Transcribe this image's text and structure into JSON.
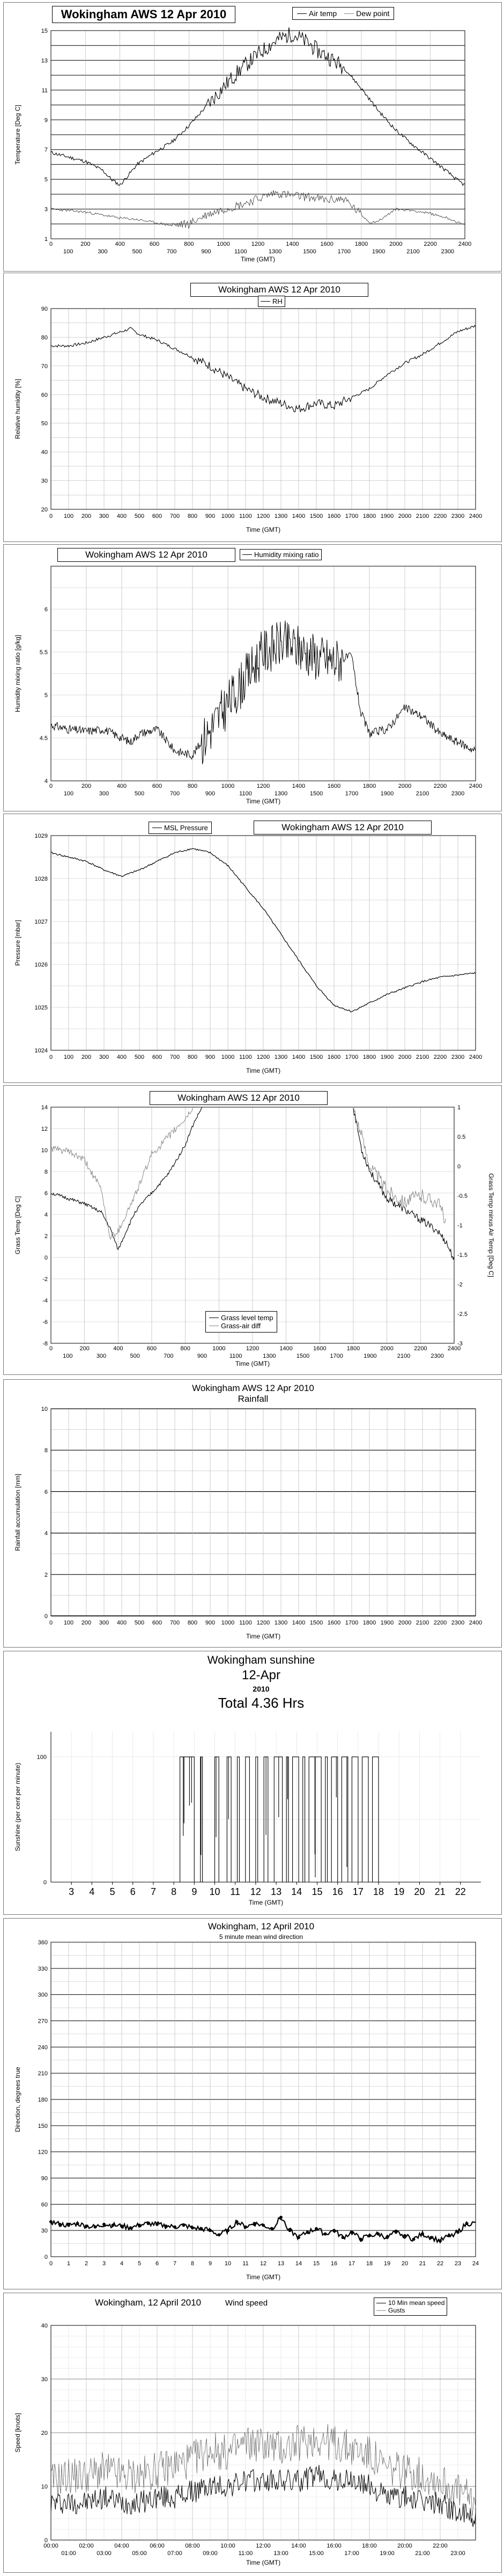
{
  "chart_data": [
    {
      "id": "temp",
      "type": "line",
      "title": "Wokingham AWS 12 Apr 2010",
      "xlabel": "Time (GMT)",
      "ylabel": "Temperature [Deg C]",
      "xlim": [
        0,
        2400
      ],
      "ylim": [
        1,
        15
      ],
      "x_ticks": [
        100,
        300,
        500,
        700,
        900,
        1100,
        1300,
        1500,
        1700,
        1900,
        2100,
        2300
      ],
      "x_ticks_top": [
        0,
        200,
        400,
        600,
        800,
        1000,
        1200,
        1400,
        1600,
        1800,
        2000,
        2200,
        2400
      ],
      "y_ticks": [
        1,
        3,
        5,
        7,
        9,
        11,
        13,
        15
      ],
      "legend": [
        "Air temp",
        "Dew point"
      ],
      "series": [
        {
          "name": "Air temp",
          "x": [
            0,
            100,
            200,
            300,
            350,
            400,
            450,
            500,
            600,
            700,
            800,
            900,
            1000,
            1100,
            1200,
            1300,
            1400,
            1500,
            1550,
            1600,
            1700,
            1800,
            1900,
            2000,
            2100,
            2200,
            2300,
            2350,
            2400
          ],
          "values": [
            6.8,
            6.5,
            6.2,
            5.6,
            5.0,
            4.6,
            5.3,
            6.0,
            6.8,
            7.5,
            8.6,
            9.9,
            11.2,
            12.4,
            13.4,
            14.3,
            14.8,
            14.1,
            13.6,
            13.3,
            12.5,
            11.1,
            9.6,
            8.3,
            7.3,
            6.4,
            5.5,
            5.0,
            4.6
          ]
        },
        {
          "name": "Dew point",
          "x": [
            0,
            100,
            200,
            300,
            400,
            500,
            600,
            700,
            800,
            900,
            1000,
            1100,
            1200,
            1300,
            1400,
            1500,
            1600,
            1700,
            1800,
            1850,
            1900,
            2000,
            2100,
            2200,
            2300,
            2400
          ],
          "values": [
            3.0,
            2.9,
            2.8,
            2.6,
            2.4,
            2.3,
            2.1,
            1.9,
            2.0,
            2.6,
            3.0,
            3.3,
            3.7,
            4.1,
            3.9,
            3.8,
            3.6,
            3.7,
            2.6,
            2.1,
            2.2,
            3.0,
            2.9,
            2.7,
            2.4,
            1.9
          ]
        }
      ]
    },
    {
      "id": "rh",
      "type": "line",
      "title": "Wokingham AWS 12 Apr 2010",
      "xlabel": "Time (GMT)",
      "ylabel": "Relative humidity [%]",
      "xlim": [
        0,
        2400
      ],
      "ylim": [
        20,
        90
      ],
      "x_ticks": [
        0,
        100,
        200,
        300,
        400,
        500,
        600,
        700,
        800,
        900,
        1000,
        1100,
        1200,
        1300,
        1400,
        1500,
        1600,
        1700,
        1800,
        1900,
        2000,
        2100,
        2200,
        2300,
        2400
      ],
      "y_ticks": [
        20,
        30,
        40,
        50,
        60,
        70,
        80,
        90
      ],
      "legend": [
        "RH"
      ],
      "series": [
        {
          "name": "RH",
          "x": [
            0,
            100,
            200,
            300,
            400,
            450,
            500,
            600,
            700,
            800,
            900,
            1000,
            1100,
            1200,
            1300,
            1400,
            1500,
            1600,
            1700,
            1800,
            1900,
            2000,
            2100,
            2200,
            2300,
            2400
          ],
          "values": [
            77,
            77,
            78,
            80,
            82,
            83,
            81,
            79,
            76,
            73,
            70,
            66,
            62,
            59,
            57,
            55,
            57,
            56,
            59,
            62,
            67,
            71,
            74,
            78,
            82,
            84
          ]
        }
      ]
    },
    {
      "id": "hmr",
      "type": "line",
      "title": "Wokingham AWS 12 Apr 2010",
      "xlabel": "Time (GMT)",
      "ylabel": "Humidity mixing ratio [g/kg]",
      "xlim": [
        0,
        2400
      ],
      "ylim": [
        4,
        6.5
      ],
      "x_ticks": [
        100,
        300,
        500,
        700,
        900,
        1100,
        1300,
        1500,
        1700,
        1900,
        2100,
        2300
      ],
      "x_ticks_top": [
        0,
        200,
        400,
        600,
        800,
        1000,
        1200,
        1400,
        1600,
        1800,
        2000,
        2200,
        2400
      ],
      "y_ticks": [
        4,
        4.5,
        5,
        5.5,
        6
      ],
      "legend": [
        "Humidity mixing ratio"
      ],
      "series": [
        {
          "name": "Humidity mixing ratio",
          "x": [
            0,
            100,
            200,
            300,
            400,
            450,
            500,
            600,
            700,
            800,
            900,
            1000,
            1100,
            1200,
            1300,
            1400,
            1500,
            1600,
            1700,
            1750,
            1800,
            1900,
            2000,
            2100,
            2200,
            2300,
            2400
          ],
          "values": [
            4.65,
            4.6,
            4.58,
            4.6,
            4.5,
            4.45,
            4.55,
            4.6,
            4.35,
            4.3,
            4.6,
            4.9,
            5.2,
            5.5,
            5.6,
            5.55,
            5.45,
            5.4,
            5.45,
            4.8,
            4.55,
            4.6,
            4.85,
            4.75,
            4.55,
            4.45,
            4.35
          ]
        }
      ]
    },
    {
      "id": "pressure",
      "type": "line",
      "title": "Wokingham AWS 12 Apr 2010",
      "xlabel": "Time (GMT)",
      "ylabel": "Pressure [mbar]",
      "xlim": [
        0,
        2400
      ],
      "ylim": [
        1024,
        1029
      ],
      "x_ticks": [
        0,
        100,
        200,
        300,
        400,
        500,
        600,
        700,
        800,
        900,
        1000,
        1100,
        1200,
        1300,
        1400,
        1500,
        1600,
        1700,
        1800,
        1900,
        2000,
        2100,
        2200,
        2300,
        2400
      ],
      "y_ticks": [
        1024,
        1025,
        1026,
        1027,
        1028,
        1029
      ],
      "legend": [
        "MSL Pressure"
      ],
      "series": [
        {
          "name": "MSL Pressure",
          "x": [
            0,
            100,
            200,
            300,
            400,
            500,
            600,
            700,
            800,
            900,
            1000,
            1100,
            1200,
            1300,
            1400,
            1500,
            1600,
            1700,
            1800,
            1900,
            2000,
            2100,
            2200,
            2300,
            2400
          ],
          "values": [
            1028.6,
            1028.5,
            1028.4,
            1028.2,
            1028.05,
            1028.2,
            1028.4,
            1028.6,
            1028.7,
            1028.6,
            1028.3,
            1027.8,
            1027.3,
            1026.7,
            1026.1,
            1025.5,
            1025.05,
            1024.9,
            1025.1,
            1025.3,
            1025.45,
            1025.6,
            1025.7,
            1025.75,
            1025.8
          ]
        }
      ]
    },
    {
      "id": "grass",
      "type": "line",
      "title": "Wokingham AWS 12 Apr 2010",
      "xlabel": "Time (GMT)",
      "ylabel": "Grass Temp [Deg C]",
      "ylabel_right": "Grass Temp minus Air Temp [Deg C]",
      "xlim": [
        0,
        2400
      ],
      "ylim": [
        -8,
        14
      ],
      "ylim_right": [
        -3,
        1
      ],
      "x_ticks": [
        100,
        300,
        500,
        700,
        900,
        1100,
        1300,
        1500,
        1700,
        1900,
        2100,
        2300
      ],
      "x_ticks_top": [
        0,
        200,
        400,
        600,
        800,
        1000,
        1200,
        1400,
        1600,
        1800,
        2000,
        2200,
        2400
      ],
      "y_ticks": [
        -8,
        -6,
        -4,
        -2,
        0,
        2,
        4,
        6,
        8,
        10,
        12,
        14
      ],
      "y_ticks_right": [
        -3,
        -2.5,
        -2,
        -1.5,
        -1,
        -0.5,
        0,
        0.5,
        1
      ],
      "legend": [
        "Grass level temp",
        "Grass-air diff"
      ],
      "series": [
        {
          "name": "Grass level temp",
          "x": [
            0,
            100,
            200,
            300,
            350,
            400,
            450,
            500,
            550,
            600,
            700,
            800,
            850,
            900,
            1800,
            1850,
            1900,
            2000,
            2100,
            2200,
            2300,
            2350,
            2400
          ],
          "values": [
            6.0,
            5.5,
            5.0,
            4.2,
            2.8,
            0.7,
            2.5,
            4.2,
            5.2,
            6.0,
            7.8,
            10.5,
            12.5,
            14.0,
            14.0,
            10.0,
            8.0,
            5.5,
            4.5,
            3.5,
            2.5,
            1.5,
            -0.2
          ]
        },
        {
          "name": "Grass-air diff",
          "x": [
            0,
            100,
            200,
            300,
            350,
            400,
            450,
            500,
            600,
            700,
            800,
            850,
            1800,
            1850,
            1900,
            2000,
            2100,
            2200,
            2300,
            2350
          ],
          "values": [
            0.3,
            0.25,
            0.1,
            -0.4,
            -1.2,
            -1.1,
            -0.8,
            -0.5,
            0.2,
            0.5,
            0.8,
            1.0,
            1.0,
            0.5,
            0.0,
            -0.4,
            -0.6,
            -0.5,
            -0.6,
            -0.9
          ]
        }
      ]
    },
    {
      "id": "rain",
      "type": "area",
      "title": "Wokingham AWS 12 Apr 2010",
      "subtitle": "Rainfall",
      "xlabel": "Time (GMT)",
      "ylabel": "Rainfall accumulation [mm]",
      "xlim": [
        0,
        2400
      ],
      "ylim": [
        0,
        10
      ],
      "x_ticks": [
        0,
        100,
        200,
        300,
        400,
        500,
        600,
        700,
        800,
        900,
        1000,
        1100,
        1200,
        1300,
        1400,
        1500,
        1600,
        1700,
        1800,
        1900,
        2000,
        2100,
        2200,
        2300,
        2400
      ],
      "y_ticks": [
        0,
        2,
        4,
        6,
        8,
        10
      ],
      "series": [
        {
          "x": [
            0,
            2400
          ],
          "values": [
            0,
            0
          ]
        }
      ]
    },
    {
      "id": "sun",
      "type": "bar",
      "title": "Wokingham sunshine",
      "date": "12-Apr",
      "year": "2010",
      "total": "Total 4.36 Hrs",
      "xlabel": "Time (GMT)",
      "ylabel": "Sunshine (per cent per minute)",
      "xlim": [
        2,
        23
      ],
      "ylim": [
        0,
        120
      ],
      "x_ticks": [
        3,
        4,
        5,
        6,
        7,
        8,
        9,
        10,
        11,
        12,
        13,
        14,
        15,
        16,
        17,
        18,
        19,
        20,
        21,
        22
      ],
      "y_ticks": [
        0,
        100
      ],
      "sun_intervals": [
        [
          8.3,
          9.0
        ],
        [
          9.3,
          9.4
        ],
        [
          10.0,
          10.2
        ],
        [
          10.6,
          10.8
        ],
        [
          11.1,
          11.2
        ],
        [
          11.5,
          11.7
        ],
        [
          12.0,
          12.1
        ],
        [
          12.4,
          12.6
        ],
        [
          12.9,
          13.3
        ],
        [
          13.5,
          13.6
        ],
        [
          13.8,
          14.1
        ],
        [
          14.3,
          14.4
        ],
        [
          14.6,
          15.2
        ],
        [
          15.4,
          15.5
        ],
        [
          15.7,
          16.0
        ],
        [
          16.2,
          16.5
        ],
        [
          16.7,
          17.0
        ],
        [
          17.2,
          17.5
        ],
        [
          17.7,
          18.0
        ]
      ]
    },
    {
      "id": "wind_dir",
      "type": "scatter",
      "title": "Wokingham,   12 April 2010",
      "subtitle": "5 minute mean wind direction",
      "xlabel": "Time (GMT)",
      "ylabel": "Direction, degrees true",
      "xlim": [
        0,
        24
      ],
      "ylim": [
        0,
        360
      ],
      "x_ticks": [
        0,
        1,
        2,
        3,
        4,
        5,
        6,
        7,
        8,
        9,
        10,
        11,
        12,
        13,
        14,
        15,
        16,
        17,
        18,
        19,
        20,
        21,
        22,
        23,
        24
      ],
      "y_ticks": [
        0,
        30,
        60,
        90,
        120,
        150,
        180,
        210,
        240,
        270,
        300,
        330,
        360
      ],
      "series": [
        {
          "x": [
            0,
            0.5,
            1,
            1.5,
            2,
            2.5,
            3,
            3.5,
            4,
            4.5,
            5,
            5.5,
            6,
            6.5,
            7,
            7.5,
            8,
            8.5,
            9,
            9.5,
            10,
            10.5,
            11,
            11.5,
            12,
            12.5,
            13,
            13.5,
            14,
            14.5,
            15,
            15.5,
            16,
            16.5,
            17,
            17.5,
            18,
            18.5,
            19,
            19.5,
            20,
            20.5,
            21,
            21.5,
            22,
            22.5,
            23,
            23.5
          ],
          "values": [
            40,
            37,
            36,
            38,
            35,
            34,
            37,
            36,
            35,
            33,
            36,
            38,
            37,
            35,
            34,
            36,
            33,
            32,
            30,
            25,
            30,
            40,
            34,
            38,
            36,
            32,
            45,
            30,
            22,
            28,
            32,
            26,
            30,
            22,
            28,
            20,
            24,
            26,
            22,
            28,
            24,
            20,
            26,
            22,
            18,
            24,
            28,
            38
          ]
        }
      ]
    },
    {
      "id": "wind_speed",
      "type": "line",
      "title": "Wokingham,   12 April 2010",
      "subtitle": "Wind speed",
      "xlabel": "Time (GMT)",
      "ylabel": "Speed [knots]",
      "xlim": [
        0,
        24
      ],
      "ylim": [
        0,
        40
      ],
      "x_ticks_top": [
        "00:00",
        "02:00",
        "04:00",
        "06:00",
        "08:00",
        "10:00",
        "12:00",
        "14:00",
        "16:00",
        "18:00",
        "20:00",
        "22:00"
      ],
      "x_ticks_bottom": [
        "01:00",
        "03:00",
        "05:00",
        "07:00",
        "09:00",
        "11:00",
        "13:00",
        "15:00",
        "17:00",
        "19:00",
        "21:00",
        "23:00"
      ],
      "y_ticks": [
        0,
        10,
        20,
        30,
        40
      ],
      "legend": [
        "10 Min mean speed",
        "Gusts"
      ],
      "series": [
        {
          "name": "10 Min mean speed",
          "x": [
            0,
            1,
            2,
            3,
            4,
            5,
            6,
            7,
            8,
            9,
            10,
            11,
            12,
            13,
            14,
            15,
            16,
            17,
            18,
            19,
            20,
            21,
            22,
            23,
            24
          ],
          "values": [
            7,
            7,
            7,
            8,
            7,
            7,
            8,
            8,
            9,
            10,
            10,
            11,
            11,
            11,
            11,
            12,
            11,
            11,
            10,
            8,
            8,
            7,
            7,
            5,
            4
          ]
        },
        {
          "name": "Gusts",
          "x": [
            0,
            1,
            2,
            3,
            4,
            5,
            6,
            7,
            8,
            9,
            10,
            11,
            12,
            13,
            14,
            15,
            16,
            17,
            18,
            19,
            20,
            21,
            22,
            23,
            24
          ],
          "values": [
            11,
            12,
            12,
            13,
            12,
            12,
            13,
            14,
            15,
            17,
            16,
            18,
            18,
            17,
            18,
            19,
            18,
            17,
            16,
            13,
            13,
            12,
            11,
            9,
            7
          ]
        }
      ]
    }
  ]
}
